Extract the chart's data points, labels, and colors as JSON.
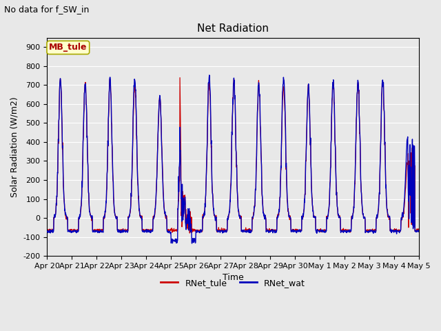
{
  "title": "Net Radiation",
  "suptitle": "No data for f_SW_in",
  "ylabel": "Solar Radiation (W/m2)",
  "xlabel": "Time",
  "ylim": [
    -200,
    950
  ],
  "yticks": [
    -200,
    -100,
    0,
    100,
    200,
    300,
    400,
    500,
    600,
    700,
    800,
    900
  ],
  "color_tule": "#cc0000",
  "color_wat": "#0000bb",
  "legend_labels": [
    "RNet_tule",
    "RNet_wat"
  ],
  "inset_label": "MB_tule",
  "inset_color": "#aa0000",
  "inset_bg": "#ffffcc",
  "inset_edge": "#aaaa00",
  "bg_color": "#e8e8e8",
  "grid_color": "#ffffff",
  "title_fontsize": 11,
  "label_fontsize": 9,
  "tick_fontsize": 8,
  "suptitle_fontsize": 9,
  "n_days": 15,
  "night_val": -65,
  "dt_hours": 0.25,
  "figwidth": 6.4,
  "figheight": 4.8,
  "dpi": 100,
  "date_labels": [
    "Apr 20",
    "Apr 21",
    "Apr 22",
    "Apr 23",
    "Apr 24",
    "Apr 25",
    "Apr 26",
    "Apr 27",
    "Apr 28",
    "Apr 29",
    "Apr 30",
    "May 1",
    "May 2",
    "May 3",
    "May 4",
    "May 5"
  ],
  "peak_vals_tule": [
    730,
    720,
    735,
    700,
    640,
    200,
    710,
    730,
    715,
    700,
    700,
    715,
    720,
    720,
    300
  ],
  "peak_vals_wat": [
    735,
    720,
    738,
    740,
    638,
    200,
    750,
    730,
    717,
    745,
    700,
    720,
    720,
    725,
    435
  ]
}
